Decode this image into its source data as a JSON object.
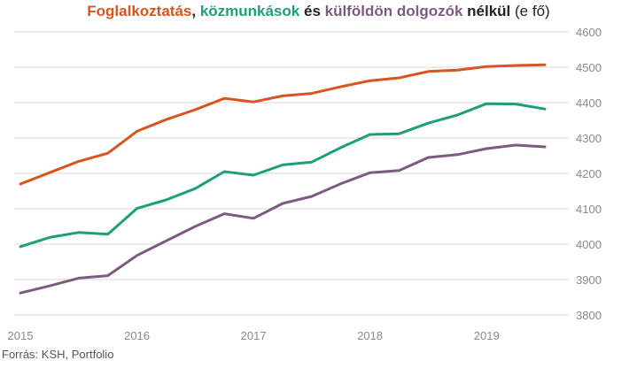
{
  "title": {
    "part1": "Foglalkoztatás",
    "sep1": ", ",
    "part2": "közmunkások",
    "sep2": " és ",
    "part3": "külföldön dolgozók",
    "part4": " nélkül",
    "part5": " (e fő)"
  },
  "source": "Forrás: KSH, Portfolio",
  "colors": {
    "orange": "#d9541e",
    "green": "#1f9e7a",
    "purple": "#7d5a80",
    "grid": "#d8d8d8"
  },
  "chart_data": {
    "type": "line",
    "title": "Foglalkoztatás, közmunkások és külföldön dolgozók nélkül (e fő)",
    "x": [
      "2015 Q1",
      "2015 Q2",
      "2015 Q3",
      "2015 Q4",
      "2016 Q1",
      "2016 Q2",
      "2016 Q3",
      "2016 Q4",
      "2017 Q1",
      "2017 Q2",
      "2017 Q3",
      "2017 Q4",
      "2018 Q1",
      "2018 Q2",
      "2018 Q3",
      "2018 Q4",
      "2019 Q1",
      "2019 Q2",
      "2019 Q3"
    ],
    "xticks": [
      "2015",
      "2016",
      "2017",
      "2018",
      "2019"
    ],
    "yticks": [
      3800,
      3900,
      4000,
      4100,
      4200,
      4300,
      4400,
      4500,
      4600
    ],
    "ylim": [
      3800,
      4600
    ],
    "grid": true,
    "y_axis_position": "right",
    "series": [
      {
        "name": "Foglalkoztatás",
        "color": "#d9541e",
        "values": [
          4170,
          4202,
          4234,
          4257,
          4319,
          4352,
          4380,
          4412,
          4402,
          4419,
          4426,
          4445,
          4462,
          4470,
          4488,
          4492,
          4502,
          4505,
          4507
        ]
      },
      {
        "name": "közmunkások",
        "color": "#1f9e7a",
        "values": [
          3993,
          4019,
          4033,
          4028,
          4101,
          4125,
          4157,
          4205,
          4195,
          4224,
          4232,
          4273,
          4310,
          4312,
          4342,
          4365,
          4397,
          4396,
          4382
        ]
      },
      {
        "name": "külföldön dolgozók",
        "color": "#7d5a80",
        "values": [
          3862,
          3882,
          3904,
          3911,
          3968,
          4009,
          4050,
          4086,
          4073,
          4115,
          4135,
          4171,
          4202,
          4208,
          4245,
          4253,
          4270,
          4280,
          4275
        ]
      }
    ]
  }
}
